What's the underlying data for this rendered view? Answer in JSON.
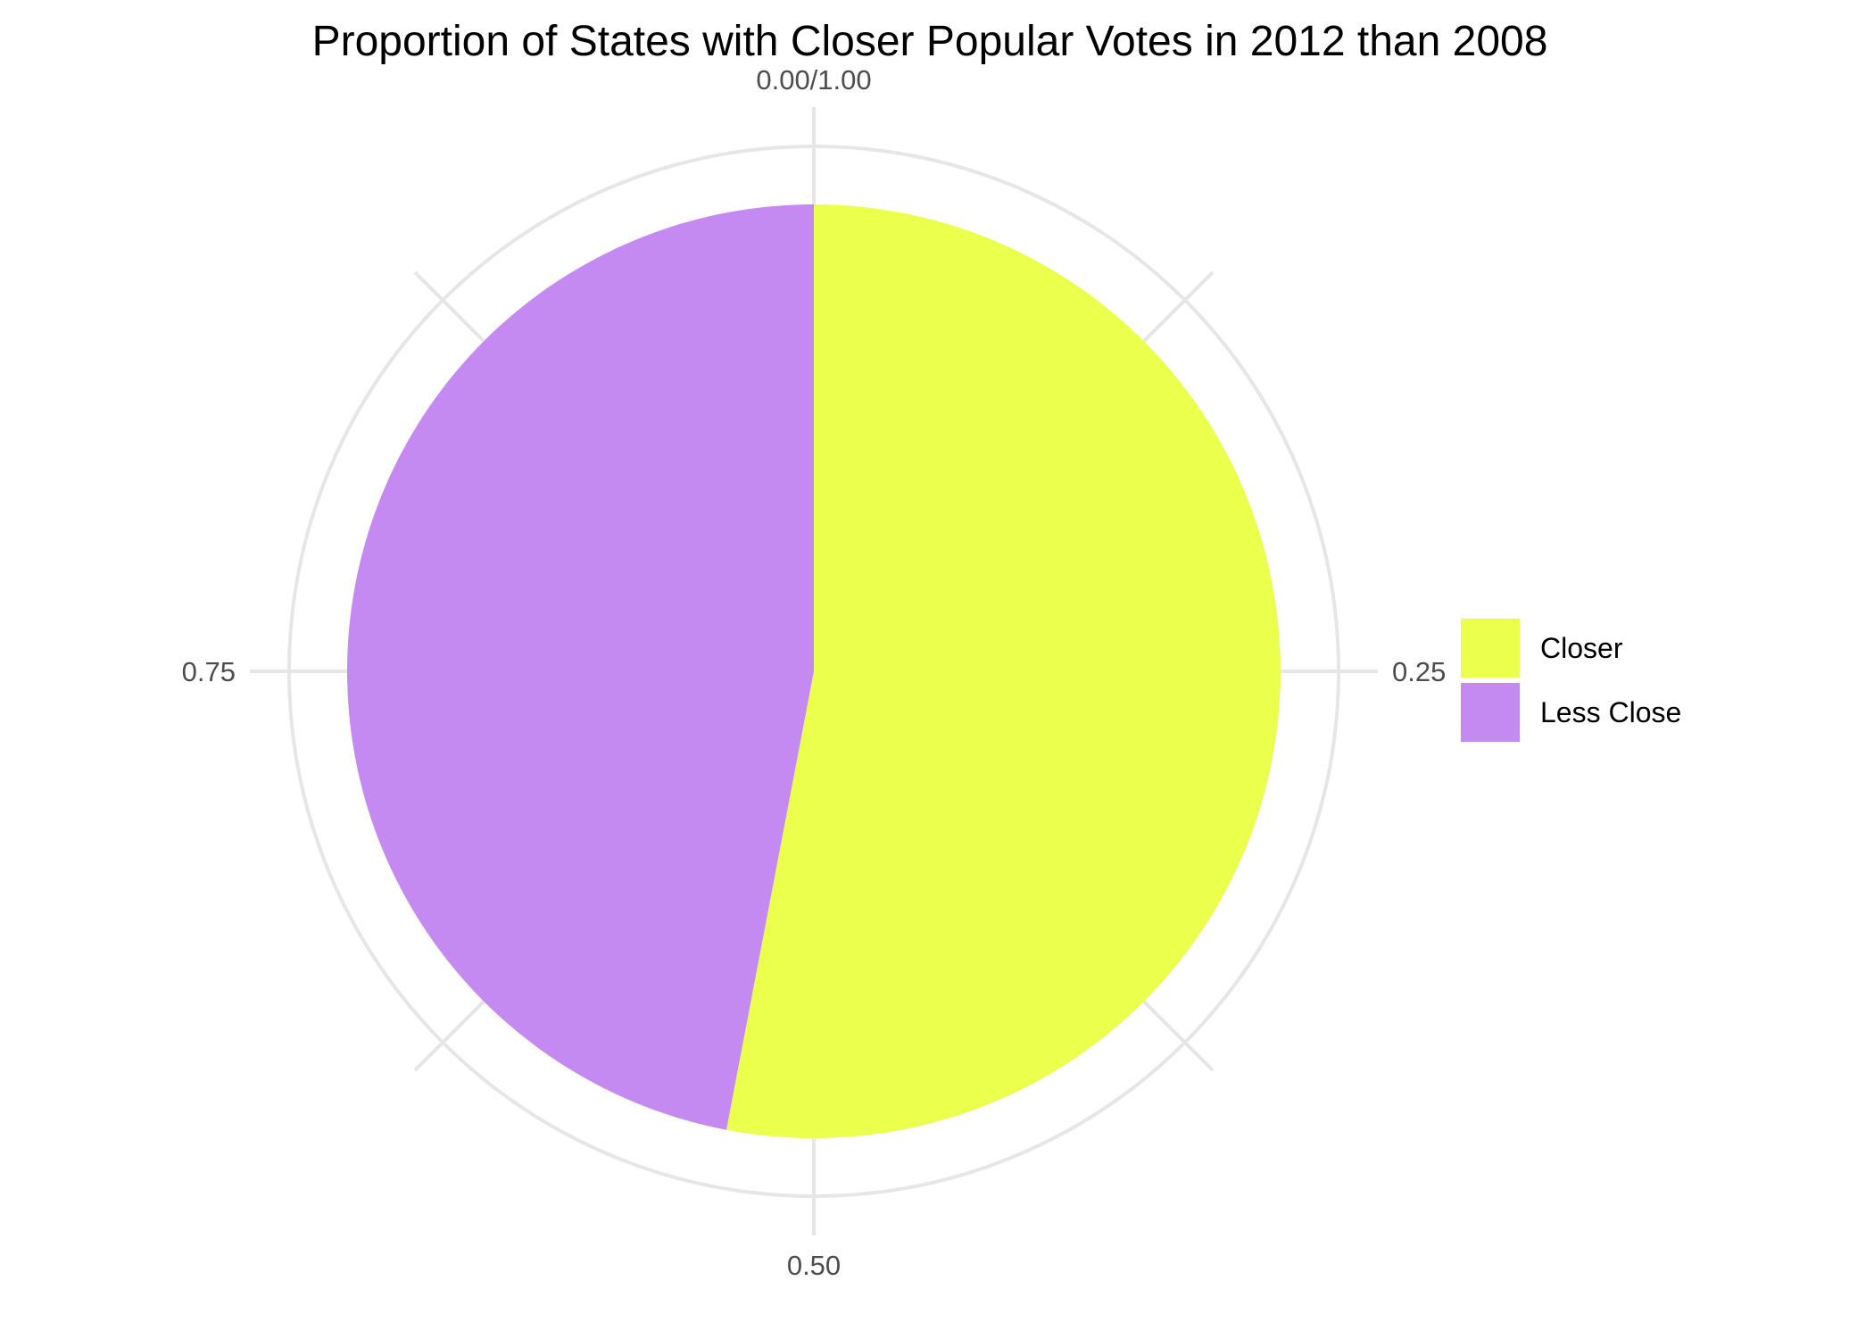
{
  "chart_data": {
    "type": "pie",
    "title": "Proportion of States with Closer Popular Votes in 2012 than 2008",
    "categories": [
      "Closer",
      "Less Close"
    ],
    "values": [
      0.53,
      0.47
    ],
    "colors": [
      "#EBFF4D",
      "#C48AF1"
    ],
    "direction": "clockwise from top",
    "angle_axis": {
      "ticks": [
        0,
        0.25,
        0.5,
        0.75
      ],
      "tick_labels": [
        "0.00/1.00",
        "0.25",
        "0.50",
        "0.75"
      ]
    },
    "grid": true,
    "legend": {
      "position": "right",
      "entries": [
        "Closer",
        "Less Close"
      ]
    }
  }
}
